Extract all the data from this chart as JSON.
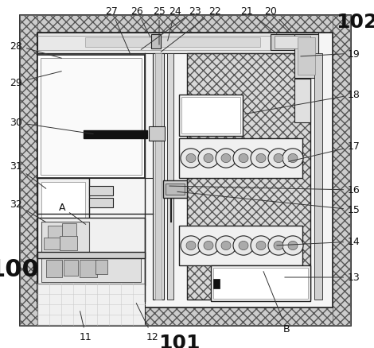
{
  "fig_width": 4.7,
  "fig_height": 4.39,
  "dpi": 100,
  "bg_color": "#ffffff"
}
